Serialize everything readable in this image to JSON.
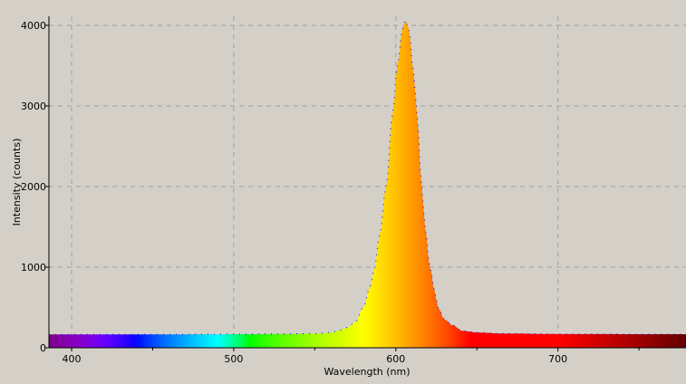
{
  "chart_data": {
    "type": "area",
    "title": "",
    "xlabel": "Wavelength (nm)",
    "ylabel": "Intensity (counts)",
    "xlim": [
      386,
      779
    ],
    "ylim": [
      0,
      4112
    ],
    "xticks": [
      400,
      500,
      600,
      700
    ],
    "yticks": [
      0,
      1000,
      2000,
      3000,
      4000
    ],
    "grid": true,
    "fill": "spectral wavelength color gradient",
    "outline_color": "#0000ff",
    "background_color": "#d4d0c8",
    "grid_color": "#a0a0a0",
    "series": [
      {
        "x": [
          386,
          400,
          450,
          500,
          550,
          560,
          564,
          570,
          575,
          580,
          584,
          587,
          590,
          594,
          598,
          601,
          604,
          606,
          608,
          611,
          613,
          616,
          618,
          621,
          624,
          626,
          630,
          635,
          641,
          650,
          665,
          700,
          779
        ],
        "y": [
          165,
          165,
          166,
          168,
          175,
          190,
          210,
          250,
          320,
          500,
          750,
          1000,
          1400,
          2000,
          2900,
          3500,
          3950,
          4060,
          3950,
          3400,
          2900,
          2000,
          1500,
          1000,
          700,
          500,
          350,
          280,
          210,
          190,
          178,
          170,
          168
        ]
      }
    ]
  }
}
